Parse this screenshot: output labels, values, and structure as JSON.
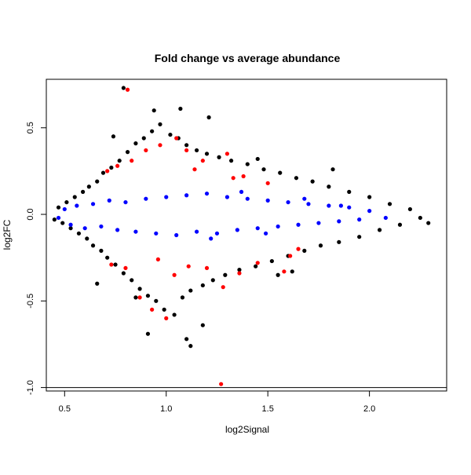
{
  "chart_data": {
    "type": "scatter",
    "title": "Fold change vs average abundance",
    "xlabel": "log2Signal",
    "ylabel": "log2FC",
    "xlim": [
      0.41,
      2.38
    ],
    "ylim": [
      -1.02,
      0.78
    ],
    "xticks": [
      0.5,
      1.0,
      1.5,
      2.0
    ],
    "xtick_labels": [
      "0.5",
      "1.0",
      "1.5",
      "2.0"
    ],
    "yticks": [
      -1.0,
      -0.5,
      0.0,
      0.5
    ],
    "ytick_labels": [
      "-1.0",
      "-0.5",
      "0.0",
      "0.5"
    ],
    "grid": false,
    "legend": "none",
    "reference_lines": [
      {
        "axis": "y",
        "value": -1.0,
        "color": "#000000"
      }
    ],
    "series": [
      {
        "color": "#000000",
        "points": [
          [
            0.45,
            -0.03
          ],
          [
            0.47,
            0.04
          ],
          [
            0.49,
            -0.05
          ],
          [
            0.51,
            0.07
          ],
          [
            0.53,
            -0.08
          ],
          [
            0.55,
            0.1
          ],
          [
            0.57,
            -0.11
          ],
          [
            0.59,
            0.13
          ],
          [
            0.61,
            -0.14
          ],
          [
            0.62,
            0.16
          ],
          [
            0.64,
            -0.18
          ],
          [
            0.66,
            0.19
          ],
          [
            0.68,
            -0.21
          ],
          [
            0.69,
            0.24
          ],
          [
            0.71,
            -0.25
          ],
          [
            0.73,
            0.27
          ],
          [
            0.75,
            -0.29
          ],
          [
            0.77,
            0.31
          ],
          [
            0.79,
            -0.34
          ],
          [
            0.81,
            0.36
          ],
          [
            0.83,
            -0.38
          ],
          [
            0.85,
            0.41
          ],
          [
            0.87,
            -0.43
          ],
          [
            0.89,
            0.44
          ],
          [
            0.91,
            -0.47
          ],
          [
            0.93,
            0.48
          ],
          [
            0.95,
            -0.5
          ],
          [
            0.97,
            0.52
          ],
          [
            0.99,
            -0.55
          ],
          [
            1.02,
            0.46
          ],
          [
            1.04,
            -0.58
          ],
          [
            1.06,
            0.44
          ],
          [
            1.08,
            -0.48
          ],
          [
            1.1,
            0.4
          ],
          [
            1.12,
            -0.44
          ],
          [
            1.15,
            0.37
          ],
          [
            1.18,
            -0.41
          ],
          [
            1.2,
            0.35
          ],
          [
            1.23,
            -0.38
          ],
          [
            1.26,
            0.33
          ],
          [
            1.29,
            -0.35
          ],
          [
            1.32,
            0.31
          ],
          [
            1.36,
            -0.32
          ],
          [
            1.4,
            0.29
          ],
          [
            1.44,
            -0.3
          ],
          [
            1.48,
            0.26
          ],
          [
            1.52,
            -0.27
          ],
          [
            1.56,
            0.24
          ],
          [
            1.6,
            -0.24
          ],
          [
            1.64,
            0.21
          ],
          [
            1.68,
            -0.21
          ],
          [
            1.72,
            0.19
          ],
          [
            1.76,
            -0.18
          ],
          [
            1.8,
            0.16
          ],
          [
            1.85,
            -0.16
          ],
          [
            1.9,
            0.13
          ],
          [
            1.95,
            -0.13
          ],
          [
            2.0,
            0.1
          ],
          [
            2.05,
            -0.09
          ],
          [
            2.1,
            0.06
          ],
          [
            2.15,
            -0.06
          ],
          [
            2.2,
            0.03
          ],
          [
            2.25,
            -0.02
          ],
          [
            2.29,
            -0.05
          ],
          [
            0.79,
            0.73
          ],
          [
            0.94,
            0.6
          ],
          [
            1.07,
            0.61
          ],
          [
            1.21,
            0.56
          ],
          [
            1.1,
            -0.72
          ],
          [
            1.12,
            -0.76
          ],
          [
            0.91,
            -0.69
          ],
          [
            1.18,
            -0.64
          ],
          [
            0.74,
            0.45
          ],
          [
            0.85,
            -0.48
          ],
          [
            1.45,
            0.32
          ],
          [
            1.55,
            -0.35
          ],
          [
            1.82,
            0.26
          ],
          [
            1.62,
            -0.33
          ],
          [
            0.66,
            -0.4
          ]
        ]
      },
      {
        "color": "#0000ff",
        "points": [
          [
            0.47,
            -0.02
          ],
          [
            0.5,
            0.03
          ],
          [
            0.53,
            -0.06
          ],
          [
            0.56,
            0.05
          ],
          [
            0.6,
            -0.08
          ],
          [
            0.64,
            0.06
          ],
          [
            0.68,
            -0.07
          ],
          [
            0.72,
            0.08
          ],
          [
            0.76,
            -0.09
          ],
          [
            0.8,
            0.07
          ],
          [
            0.85,
            -0.1
          ],
          [
            0.9,
            0.09
          ],
          [
            0.95,
            -0.11
          ],
          [
            1.0,
            0.1
          ],
          [
            1.05,
            -0.12
          ],
          [
            1.1,
            0.11
          ],
          [
            1.15,
            -0.1
          ],
          [
            1.2,
            0.12
          ],
          [
            1.25,
            -0.11
          ],
          [
            1.3,
            0.1
          ],
          [
            1.35,
            -0.09
          ],
          [
            1.4,
            0.09
          ],
          [
            1.45,
            -0.08
          ],
          [
            1.5,
            0.08
          ],
          [
            1.55,
            -0.07
          ],
          [
            1.6,
            0.07
          ],
          [
            1.65,
            -0.06
          ],
          [
            1.7,
            0.06
          ],
          [
            1.75,
            -0.05
          ],
          [
            1.8,
            0.05
          ],
          [
            1.85,
            -0.04
          ],
          [
            1.9,
            0.04
          ],
          [
            1.95,
            -0.03
          ],
          [
            2.0,
            0.02
          ],
          [
            2.08,
            -0.02
          ],
          [
            1.37,
            0.13
          ],
          [
            1.22,
            -0.14
          ],
          [
            1.49,
            -0.11
          ],
          [
            1.68,
            0.09
          ],
          [
            1.86,
            0.05
          ]
        ]
      },
      {
        "color": "#ff0000",
        "points": [
          [
            0.81,
            0.72
          ],
          [
            0.71,
            0.25
          ],
          [
            0.76,
            0.28
          ],
          [
            0.83,
            0.31
          ],
          [
            0.9,
            0.37
          ],
          [
            0.97,
            0.4
          ],
          [
            1.05,
            0.44
          ],
          [
            1.1,
            0.37
          ],
          [
            1.18,
            0.31
          ],
          [
            1.3,
            0.35
          ],
          [
            1.38,
            0.22
          ],
          [
            1.5,
            0.18
          ],
          [
            0.73,
            -0.29
          ],
          [
            0.8,
            -0.31
          ],
          [
            0.87,
            -0.48
          ],
          [
            0.93,
            -0.55
          ],
          [
            1.0,
            -0.6
          ],
          [
            1.04,
            -0.35
          ],
          [
            1.11,
            -0.3
          ],
          [
            1.2,
            -0.31
          ],
          [
            1.28,
            -0.42
          ],
          [
            1.36,
            -0.34
          ],
          [
            1.45,
            -0.28
          ],
          [
            1.58,
            -0.33
          ],
          [
            1.65,
            -0.2
          ],
          [
            1.27,
            -0.98
          ],
          [
            1.14,
            0.26
          ],
          [
            0.96,
            -0.26
          ],
          [
            1.33,
            0.21
          ],
          [
            1.61,
            -0.24
          ]
        ]
      }
    ]
  }
}
